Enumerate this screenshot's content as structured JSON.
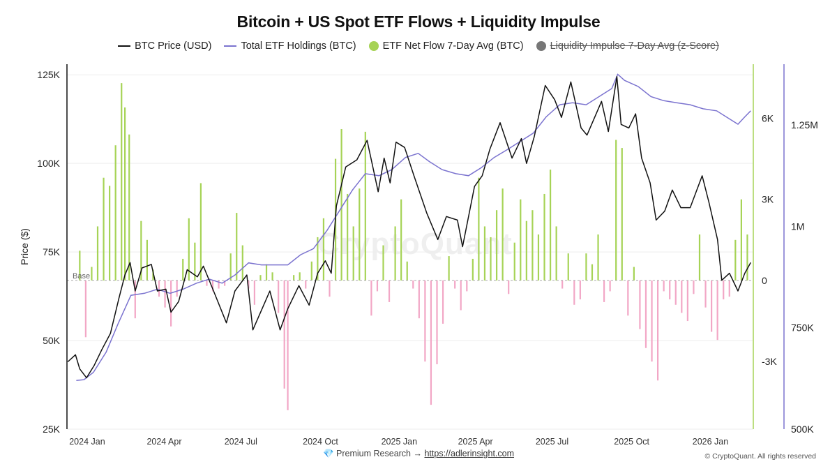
{
  "title": "Bitcoin + US Spot ETF Flows + Liquidity Impulse",
  "legend": [
    {
      "label": "BTC Price (USD)",
      "color": "#111111",
      "marker": "line",
      "hidden": false
    },
    {
      "label": "Total ETF Holdings (BTC)",
      "color": "#7b73cf",
      "marker": "line",
      "hidden": false
    },
    {
      "label": "ETF Net Flow 7-Day Avg (BTC)",
      "color": "#a6d356",
      "marker": "dot",
      "hidden": false
    },
    {
      "label": "Liquidity Impulse 7-Day Avg (z-Score)",
      "color": "#777777",
      "marker": "dot",
      "hidden": true
    }
  ],
  "watermark": "CryptoQuant",
  "footer": {
    "icon": "💎",
    "text": "Premium Research →",
    "link": "https://adlerinsight.com",
    "copyright": "© CryptoQuant. All rights reserved"
  },
  "chart_data": {
    "type": "line",
    "title": "Bitcoin + US Spot ETF Flows + Liquidity Impulse",
    "x_ticks": [
      "2024 Jan",
      "2024 Apr",
      "2024 Jul",
      "2024 Oct",
      "2025 Jan",
      "2025 Apr",
      "2025 Jul",
      "2025 Oct",
      "2026 Jan"
    ],
    "x_range": [
      "2023-12-31",
      "2026-03-15"
    ],
    "axes": {
      "price": {
        "label": "Price ($)",
        "ticks": [
          "25K",
          "50K",
          "75K",
          "100K",
          "125K"
        ],
        "range": [
          25000,
          128000
        ]
      },
      "flow": {
        "ticks": [
          "-3K",
          "0",
          "3K",
          "6K"
        ],
        "range": [
          -5500,
          8000
        ],
        "base_label": "Base"
      },
      "holdings": {
        "ticks": [
          "500K",
          "750K",
          "1M",
          "1.25M"
        ],
        "range": [
          500000,
          1400000
        ]
      }
    },
    "grid": true,
    "series": [
      {
        "name": "BTC Price (USD)",
        "axis": "price",
        "color": "#111111",
        "points": [
          [
            "2024-01-01",
            44000
          ],
          [
            "2024-01-10",
            46000
          ],
          [
            "2024-01-15",
            42000
          ],
          [
            "2024-01-23",
            39500
          ],
          [
            "2024-02-01",
            43000
          ],
          [
            "2024-02-10",
            47500
          ],
          [
            "2024-02-20",
            52000
          ],
          [
            "2024-03-01",
            62000
          ],
          [
            "2024-03-08",
            68500
          ],
          [
            "2024-03-14",
            72000
          ],
          [
            "2024-03-20",
            64000
          ],
          [
            "2024-03-28",
            70500
          ],
          [
            "2024-04-08",
            71500
          ],
          [
            "2024-04-15",
            64000
          ],
          [
            "2024-04-25",
            64500
          ],
          [
            "2024-05-01",
            58000
          ],
          [
            "2024-05-10",
            61000
          ],
          [
            "2024-05-20",
            70000
          ],
          [
            "2024-06-01",
            68000
          ],
          [
            "2024-06-08",
            71000
          ],
          [
            "2024-06-20",
            64000
          ],
          [
            "2024-07-05",
            55000
          ],
          [
            "2024-07-15",
            64000
          ],
          [
            "2024-07-29",
            68500
          ],
          [
            "2024-08-05",
            53000
          ],
          [
            "2024-08-15",
            58500
          ],
          [
            "2024-08-25",
            64000
          ],
          [
            "2024-09-06",
            53000
          ],
          [
            "2024-09-15",
            59000
          ],
          [
            "2024-09-28",
            65500
          ],
          [
            "2024-10-10",
            60000
          ],
          [
            "2024-10-20",
            69000
          ],
          [
            "2024-10-29",
            72500
          ],
          [
            "2024-11-05",
            69000
          ],
          [
            "2024-11-11",
            88000
          ],
          [
            "2024-11-22",
            99000
          ],
          [
            "2024-12-05",
            101000
          ],
          [
            "2024-12-17",
            106500
          ],
          [
            "2024-12-30",
            92000
          ],
          [
            "2025-01-06",
            101500
          ],
          [
            "2025-01-13",
            94500
          ],
          [
            "2025-01-20",
            106000
          ],
          [
            "2025-01-30",
            104500
          ],
          [
            "2025-02-10",
            96500
          ],
          [
            "2025-02-25",
            86000
          ],
          [
            "2025-03-10",
            78500
          ],
          [
            "2025-03-20",
            85000
          ],
          [
            "2025-04-02",
            84000
          ],
          [
            "2025-04-08",
            76500
          ],
          [
            "2025-04-22",
            93500
          ],
          [
            "2025-05-01",
            96500
          ],
          [
            "2025-05-10",
            104000
          ],
          [
            "2025-05-22",
            111500
          ],
          [
            "2025-06-05",
            101500
          ],
          [
            "2025-06-16",
            107000
          ],
          [
            "2025-06-22",
            100000
          ],
          [
            "2025-07-01",
            107500
          ],
          [
            "2025-07-14",
            122000
          ],
          [
            "2025-07-25",
            118000
          ],
          [
            "2025-08-02",
            113000
          ],
          [
            "2025-08-13",
            123000
          ],
          [
            "2025-08-25",
            110000
          ],
          [
            "2025-09-01",
            108000
          ],
          [
            "2025-09-18",
            117500
          ],
          [
            "2025-09-26",
            109000
          ],
          [
            "2025-10-06",
            124500
          ],
          [
            "2025-10-11",
            111000
          ],
          [
            "2025-10-20",
            110000
          ],
          [
            "2025-10-28",
            114000
          ],
          [
            "2025-11-04",
            101500
          ],
          [
            "2025-11-14",
            94500
          ],
          [
            "2025-11-21",
            84000
          ],
          [
            "2025-12-01",
            86500
          ],
          [
            "2025-12-10",
            92500
          ],
          [
            "2025-12-20",
            87500
          ],
          [
            "2025-12-31",
            87500
          ],
          [
            "2026-01-14",
            96500
          ],
          [
            "2026-01-22",
            89000
          ],
          [
            "2026-02-01",
            78500
          ],
          [
            "2026-02-06",
            67000
          ],
          [
            "2026-02-15",
            69000
          ],
          [
            "2026-02-25",
            64000
          ],
          [
            "2026-03-05",
            69000
          ],
          [
            "2026-03-12",
            72000
          ]
        ]
      },
      {
        "name": "Total ETF Holdings (BTC)",
        "axis": "holdings",
        "color": "#7b73cf",
        "points": [
          [
            "2024-01-11",
            620000
          ],
          [
            "2024-01-20",
            622000
          ],
          [
            "2024-01-31",
            640000
          ],
          [
            "2024-02-15",
            690000
          ],
          [
            "2024-02-29",
            760000
          ],
          [
            "2024-03-15",
            830000
          ],
          [
            "2024-03-31",
            835000
          ],
          [
            "2024-04-15",
            845000
          ],
          [
            "2024-04-30",
            835000
          ],
          [
            "2024-05-15",
            845000
          ],
          [
            "2024-05-31",
            860000
          ],
          [
            "2024-06-15",
            870000
          ],
          [
            "2024-06-30",
            860000
          ],
          [
            "2024-07-15",
            880000
          ],
          [
            "2024-07-31",
            910000
          ],
          [
            "2024-08-15",
            905000
          ],
          [
            "2024-08-31",
            905000
          ],
          [
            "2024-09-15",
            905000
          ],
          [
            "2024-09-30",
            930000
          ],
          [
            "2024-10-15",
            945000
          ],
          [
            "2024-10-31",
            990000
          ],
          [
            "2024-11-15",
            1040000
          ],
          [
            "2024-11-30",
            1090000
          ],
          [
            "2024-12-15",
            1130000
          ],
          [
            "2024-12-31",
            1125000
          ],
          [
            "2025-01-15",
            1140000
          ],
          [
            "2025-01-31",
            1170000
          ],
          [
            "2025-02-15",
            1180000
          ],
          [
            "2025-02-28",
            1160000
          ],
          [
            "2025-03-15",
            1140000
          ],
          [
            "2025-03-31",
            1130000
          ],
          [
            "2025-04-15",
            1125000
          ],
          [
            "2025-04-30",
            1145000
          ],
          [
            "2025-05-15",
            1170000
          ],
          [
            "2025-05-31",
            1190000
          ],
          [
            "2025-06-15",
            1210000
          ],
          [
            "2025-06-30",
            1230000
          ],
          [
            "2025-07-15",
            1270000
          ],
          [
            "2025-07-31",
            1300000
          ],
          [
            "2025-08-15",
            1305000
          ],
          [
            "2025-08-31",
            1300000
          ],
          [
            "2025-09-15",
            1320000
          ],
          [
            "2025-09-30",
            1340000
          ],
          [
            "2025-10-07",
            1375000
          ],
          [
            "2025-10-15",
            1360000
          ],
          [
            "2025-10-31",
            1345000
          ],
          [
            "2025-11-15",
            1320000
          ],
          [
            "2025-11-30",
            1310000
          ],
          [
            "2025-12-15",
            1305000
          ],
          [
            "2025-12-31",
            1300000
          ],
          [
            "2026-01-15",
            1290000
          ],
          [
            "2026-01-31",
            1285000
          ],
          [
            "2026-02-15",
            1265000
          ],
          [
            "2026-02-25",
            1252000
          ],
          [
            "2026-03-05",
            1270000
          ],
          [
            "2026-03-12",
            1285000
          ]
        ]
      },
      {
        "name": "ETF Net Flow 7-Day Avg (BTC)",
        "axis": "flow",
        "color_pos": "#a6d356",
        "color_neg": "#f2a7c6",
        "points": [
          [
            "2024-01-15",
            1100
          ],
          [
            "2024-01-22",
            -2100
          ],
          [
            "2024-01-29",
            500
          ],
          [
            "2024-02-05",
            2000
          ],
          [
            "2024-02-12",
            3800
          ],
          [
            "2024-02-19",
            3500
          ],
          [
            "2024-02-26",
            5000
          ],
          [
            "2024-03-04",
            7300
          ],
          [
            "2024-03-08",
            6400
          ],
          [
            "2024-03-13",
            5400
          ],
          [
            "2024-03-20",
            -1400
          ],
          [
            "2024-03-27",
            2200
          ],
          [
            "2024-04-03",
            1500
          ],
          [
            "2024-04-10",
            400
          ],
          [
            "2024-04-17",
            -600
          ],
          [
            "2024-04-24",
            -1000
          ],
          [
            "2024-05-01",
            -1700
          ],
          [
            "2024-05-08",
            -600
          ],
          [
            "2024-05-15",
            800
          ],
          [
            "2024-05-22",
            2300
          ],
          [
            "2024-05-29",
            1400
          ],
          [
            "2024-06-05",
            3600
          ],
          [
            "2024-06-12",
            -200
          ],
          [
            "2024-06-19",
            -400
          ],
          [
            "2024-06-26",
            -300
          ],
          [
            "2024-07-03",
            -200
          ],
          [
            "2024-07-10",
            1000
          ],
          [
            "2024-07-17",
            2500
          ],
          [
            "2024-07-24",
            1300
          ],
          [
            "2024-07-31",
            -300
          ],
          [
            "2024-08-07",
            -900
          ],
          [
            "2024-08-14",
            200
          ],
          [
            "2024-08-21",
            600
          ],
          [
            "2024-08-28",
            300
          ],
          [
            "2024-09-04",
            -1200
          ],
          [
            "2024-09-11",
            -4000
          ],
          [
            "2024-09-15",
            -4800
          ],
          [
            "2024-09-22",
            200
          ],
          [
            "2024-09-29",
            300
          ],
          [
            "2024-10-06",
            -300
          ],
          [
            "2024-10-13",
            700
          ],
          [
            "2024-10-20",
            1600
          ],
          [
            "2024-10-27",
            2300
          ],
          [
            "2024-11-03",
            -600
          ],
          [
            "2024-11-10",
            4500
          ],
          [
            "2024-11-17",
            5600
          ],
          [
            "2024-11-24",
            3200
          ],
          [
            "2024-12-01",
            2000
          ],
          [
            "2024-12-08",
            3400
          ],
          [
            "2024-12-15",
            5500
          ],
          [
            "2024-12-22",
            -1300
          ],
          [
            "2024-12-29",
            -400
          ],
          [
            "2025-01-05",
            1300
          ],
          [
            "2025-01-12",
            -800
          ],
          [
            "2025-01-19",
            2000
          ],
          [
            "2025-01-26",
            3000
          ],
          [
            "2025-02-02",
            700
          ],
          [
            "2025-02-09",
            -300
          ],
          [
            "2025-02-16",
            -1400
          ],
          [
            "2025-02-23",
            -3000
          ],
          [
            "2025-03-02",
            -4600
          ],
          [
            "2025-03-09",
            -3100
          ],
          [
            "2025-03-16",
            -1600
          ],
          [
            "2025-03-23",
            900
          ],
          [
            "2025-03-30",
            -300
          ],
          [
            "2025-04-06",
            -1100
          ],
          [
            "2025-04-13",
            -400
          ],
          [
            "2025-04-20",
            800
          ],
          [
            "2025-04-27",
            3800
          ],
          [
            "2025-05-04",
            2000
          ],
          [
            "2025-05-11",
            1600
          ],
          [
            "2025-05-18",
            2600
          ],
          [
            "2025-05-25",
            3400
          ],
          [
            "2025-06-01",
            -500
          ],
          [
            "2025-06-08",
            1400
          ],
          [
            "2025-06-15",
            3000
          ],
          [
            "2025-06-22",
            2200
          ],
          [
            "2025-06-29",
            2600
          ],
          [
            "2025-07-06",
            1700
          ],
          [
            "2025-07-13",
            3200
          ],
          [
            "2025-07-20",
            4100
          ],
          [
            "2025-07-27",
            2000
          ],
          [
            "2025-08-03",
            -300
          ],
          [
            "2025-08-10",
            1000
          ],
          [
            "2025-08-17",
            -900
          ],
          [
            "2025-08-24",
            -700
          ],
          [
            "2025-08-31",
            1000
          ],
          [
            "2025-09-07",
            600
          ],
          [
            "2025-09-14",
            1700
          ],
          [
            "2025-09-21",
            -800
          ],
          [
            "2025-09-28",
            -400
          ],
          [
            "2025-10-05",
            5200
          ],
          [
            "2025-10-12",
            4900
          ],
          [
            "2025-10-19",
            -1300
          ],
          [
            "2025-10-26",
            500
          ],
          [
            "2025-11-02",
            -1800
          ],
          [
            "2025-11-09",
            -2500
          ],
          [
            "2025-11-16",
            -3000
          ],
          [
            "2025-11-23",
            -3700
          ],
          [
            "2025-11-30",
            -400
          ],
          [
            "2025-12-07",
            -700
          ],
          [
            "2025-12-14",
            -900
          ],
          [
            "2025-12-21",
            -1200
          ],
          [
            "2025-12-28",
            -1500
          ],
          [
            "2026-01-04",
            -500
          ],
          [
            "2026-01-11",
            1700
          ],
          [
            "2026-01-18",
            -1000
          ],
          [
            "2026-01-25",
            -1900
          ],
          [
            "2026-02-01",
            -2200
          ],
          [
            "2026-02-08",
            -700
          ],
          [
            "2026-02-15",
            -600
          ],
          [
            "2026-02-22",
            1500
          ],
          [
            "2026-03-01",
            3000
          ],
          [
            "2026-03-08",
            1700
          ]
        ]
      }
    ]
  }
}
